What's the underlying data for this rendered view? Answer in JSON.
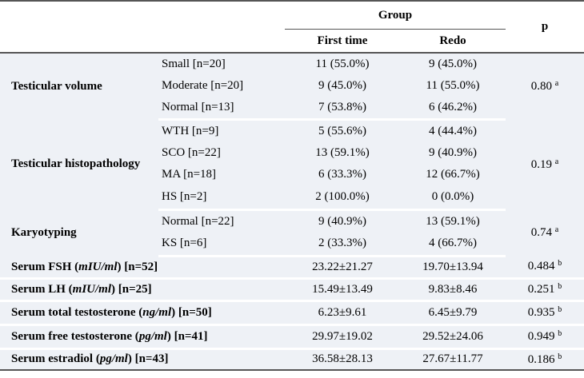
{
  "header": {
    "group": "Group",
    "first_time": "First time",
    "redo": "Redo",
    "p": "p"
  },
  "testicular_volume": {
    "label": "Testicular volume",
    "rows": [
      {
        "sub": "Small [n=20]",
        "first": "11 (55.0%)",
        "redo": "9 (45.0%)"
      },
      {
        "sub": "Moderate [n=20]",
        "first": "9 (45.0%)",
        "redo": "11 (55.0%)"
      },
      {
        "sub": "Normal [n=13]",
        "first": "7 (53.8%)",
        "redo": "6 (46.2%)"
      }
    ],
    "p": "0.80",
    "p_sup": "a"
  },
  "histopathology": {
    "label": "Testicular histopathology",
    "rows": [
      {
        "sub": "WTH [n=9]",
        "first": "5 (55.6%)",
        "redo": "4 (44.4%)"
      },
      {
        "sub": "SCO [n=22]",
        "first": "13 (59.1%)",
        "redo": "9 (40.9%)"
      },
      {
        "sub": "MA [n=18]",
        "first": "6 (33.3%)",
        "redo": "12 (66.7%)"
      },
      {
        "sub": "HS [n=2]",
        "first": "2 (100.0%)",
        "redo": "0 (0.0%)"
      }
    ],
    "p": "0.19",
    "p_sup": "a"
  },
  "karyotyping": {
    "label": "Karyotyping",
    "rows": [
      {
        "sub": "Normal [n=22]",
        "first": "9 (40.9%)",
        "redo": "13 (59.1%)"
      },
      {
        "sub": "KS [n=6]",
        "first": "2 (33.3%)",
        "redo": "4 (66.7%)"
      }
    ],
    "p": "0.74",
    "p_sup": "a"
  },
  "serum": [
    {
      "pre": "Serum FSH (",
      "unit": "mIU/ml",
      "post": ") [n=52]",
      "first": "23.22±21.27",
      "redo": "19.70±13.94",
      "p": "0.484",
      "p_sup": "b"
    },
    {
      "pre": "Serum LH (",
      "unit": "mIU/ml",
      "post": ") [n=25]",
      "first": "15.49±13.49",
      "redo": "9.83±8.46",
      "p": "0.251",
      "p_sup": "b"
    },
    {
      "pre": "Serum total testosterone (",
      "unit": "ng/ml",
      "post": ") [n=50]",
      "first": "6.23±9.61",
      "redo": "6.45±9.79",
      "p": "0.935",
      "p_sup": "b"
    },
    {
      "pre": "Serum free testosterone (",
      "unit": "pg/ml",
      "post": ") [n=41]",
      "first": "29.97±19.02",
      "redo": "29.52±24.06",
      "p": "0.949",
      "p_sup": "b"
    },
    {
      "pre": "Serum estradiol (",
      "unit": "pg/ml",
      "post": ") [n=43]",
      "first": "36.58±28.13",
      "redo": "27.67±11.77",
      "p": "0.186",
      "p_sup": "b"
    }
  ]
}
